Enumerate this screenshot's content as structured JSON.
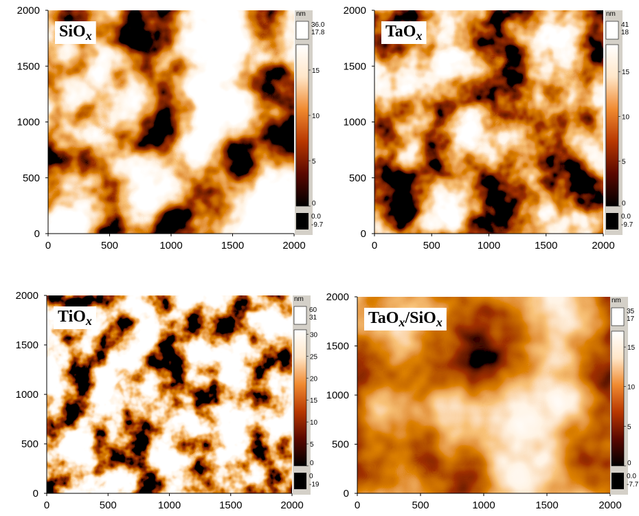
{
  "chart_data": [
    {
      "type": "image",
      "title": [
        "SiO",
        "x"
      ],
      "xlim": [
        0,
        2000
      ],
      "xticks": [
        0,
        500,
        1000,
        1500,
        2000
      ],
      "ylim": [
        0,
        2000
      ],
      "yticks": [
        0,
        500,
        1000,
        1500,
        2000
      ],
      "colors": [
        "#000000",
        "#5a0800",
        "#b83800",
        "#f08a30",
        "#ffe6c8",
        "#ffffff"
      ],
      "colorbar": {
        "unit": "nm",
        "over": [
          {
            "value": 36,
            "label": "36.0"
          },
          17.8
        ],
        "lim": [
          0,
          17.8
        ],
        "ticks": [
          0,
          5,
          10,
          15
        ],
        "under": [
          {
            "value": 0,
            "label": "0.0"
          },
          -9.7
        ]
      }
    },
    {
      "type": "image",
      "title": [
        "TaO",
        "x"
      ],
      "xlim": [
        0,
        2000
      ],
      "xticks": [
        0,
        500,
        1000,
        1500,
        2000
      ],
      "ylim": [
        0,
        2000
      ],
      "yticks": [
        0,
        500,
        1000,
        1500,
        2000
      ],
      "colors": [
        "#000000",
        "#5a0800",
        "#b83800",
        "#f08a30",
        "#ffe6c8",
        "#ffffff"
      ],
      "colorbar": {
        "unit": "nm",
        "over": [
          41,
          18
        ],
        "lim": [
          0,
          18
        ],
        "ticks": [
          0,
          5,
          10,
          15
        ],
        "under": [
          {
            "value": 0,
            "label": "0.0"
          },
          -9.7
        ]
      }
    },
    {
      "type": "image",
      "title": [
        "TiO",
        "x"
      ],
      "xlim": [
        0,
        2000
      ],
      "xticks": [
        0,
        500,
        1000,
        1500,
        2000
      ],
      "ylim": [
        0,
        2000
      ],
      "yticks": [
        0,
        500,
        1000,
        1500,
        2000
      ],
      "colors": [
        "#000000",
        "#5a0800",
        "#b83800",
        "#f08a30",
        "#ffe6c8",
        "#ffffff"
      ],
      "colorbar": {
        "unit": "nm",
        "over": [
          60,
          31
        ],
        "lim": [
          0,
          31
        ],
        "ticks": [
          0,
          5,
          10,
          15,
          20,
          25,
          30
        ],
        "under": [
          0,
          -19
        ]
      }
    },
    {
      "type": "image",
      "title": [
        "TaO",
        "x",
        "/SiO",
        "x"
      ],
      "xlim": [
        0,
        2000
      ],
      "xticks": [
        0,
        500,
        1000,
        1500,
        2000
      ],
      "ylim": [
        0,
        2000
      ],
      "yticks": [
        0,
        500,
        1000,
        1500,
        2000
      ],
      "colors": [
        "#000000",
        "#5a0800",
        "#b83800",
        "#f08a30",
        "#ffe6c8",
        "#ffffff"
      ],
      "colorbar": {
        "unit": "nm",
        "over": [
          35,
          17
        ],
        "lim": [
          0,
          17
        ],
        "ticks": [
          0,
          5,
          10,
          15
        ],
        "under": [
          {
            "value": 0,
            "label": "0.0"
          },
          -7.7
        ]
      }
    }
  ]
}
